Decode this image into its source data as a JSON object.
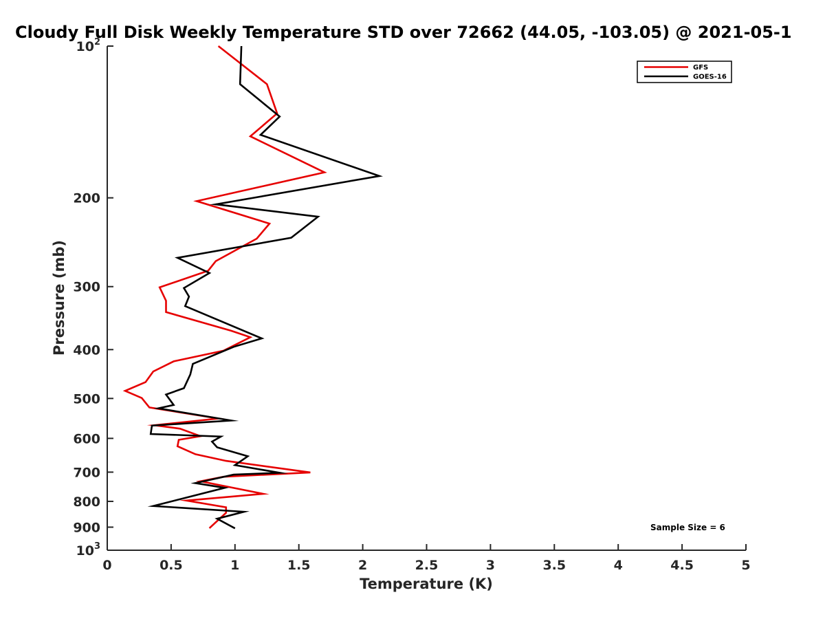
{
  "chart_data": {
    "type": "line",
    "title": "Cloudy Full Disk Weekly Temperature STD over 72662 (44.05, -103.05) @ 2021-05-1",
    "xlabel": "Temperature (K)",
    "ylabel": "Pressure (mb)",
    "xlim": [
      0,
      5
    ],
    "ylim": [
      100,
      1000
    ],
    "yscale": "log",
    "y_reversed": true,
    "x_ticks": [
      "0",
      "0.5",
      "1",
      "1.5",
      "2",
      "2.5",
      "3",
      "3.5",
      "4",
      "4.5",
      "5"
    ],
    "y_ticks": [
      {
        "value": 100,
        "base": "10",
        "exp": "2"
      },
      {
        "value": 200,
        "label": "200"
      },
      {
        "value": 300,
        "label": "300"
      },
      {
        "value": 400,
        "label": "400"
      },
      {
        "value": 500,
        "label": "500"
      },
      {
        "value": 600,
        "label": "600"
      },
      {
        "value": 700,
        "label": "700"
      },
      {
        "value": 800,
        "label": "800"
      },
      {
        "value": 900,
        "label": "900"
      },
      {
        "value": 1000,
        "base": "10",
        "exp": "3"
      }
    ],
    "legend_position": "top-right",
    "annotation": "Sample Size = 6",
    "series": [
      {
        "name": "GFS",
        "color": "#e60000",
        "x": [
          0.87,
          1.25,
          1.33,
          1.12,
          1.7,
          0.7,
          1.27,
          1.17,
          0.85,
          0.79,
          0.41,
          0.46,
          0.46,
          0.97,
          1.12,
          0.91,
          0.52,
          0.36,
          0.3,
          0.14,
          0.27,
          0.33,
          0.87,
          0.37,
          0.57,
          0.73,
          0.56,
          0.55,
          0.69,
          0.93,
          1.59,
          0.91,
          0.73,
          1.22,
          0.62,
          0.93,
          0.93,
          0.8
        ],
        "y": [
          100,
          119,
          136,
          151,
          178,
          203,
          225,
          241,
          267,
          279,
          301,
          320,
          337,
          367,
          378,
          402,
          422,
          442,
          464,
          483,
          499,
          521,
          548,
          565,
          574,
          594,
          604,
          622,
          645,
          665,
          701,
          715,
          730,
          773,
          797,
          822,
          843,
          904
        ]
      },
      {
        "name": "GOES-16",
        "color": "#000000",
        "x": [
          1.05,
          1.04,
          1.35,
          1.2,
          2.13,
          0.85,
          1.65,
          1.44,
          0.55,
          0.8,
          0.6,
          0.64,
          0.61,
          1.21,
          0.99,
          0.67,
          0.65,
          0.6,
          0.46,
          0.52,
          0.4,
          0.97,
          0.35,
          0.34,
          0.89,
          0.82,
          0.86,
          1.1,
          1.0,
          1.35,
          0.99,
          0.69,
          0.92,
          0.36,
          1.07,
          0.86,
          1.0
        ],
        "y": [
          100,
          119,
          138,
          150,
          181,
          206,
          218,
          240,
          263,
          282,
          302,
          314,
          328,
          380,
          395,
          427,
          448,
          477,
          491,
          515,
          523,
          553,
          566,
          588,
          595,
          609,
          625,
          651,
          678,
          702,
          708,
          736,
          752,
          817,
          839,
          866,
          905
        ]
      }
    ]
  }
}
